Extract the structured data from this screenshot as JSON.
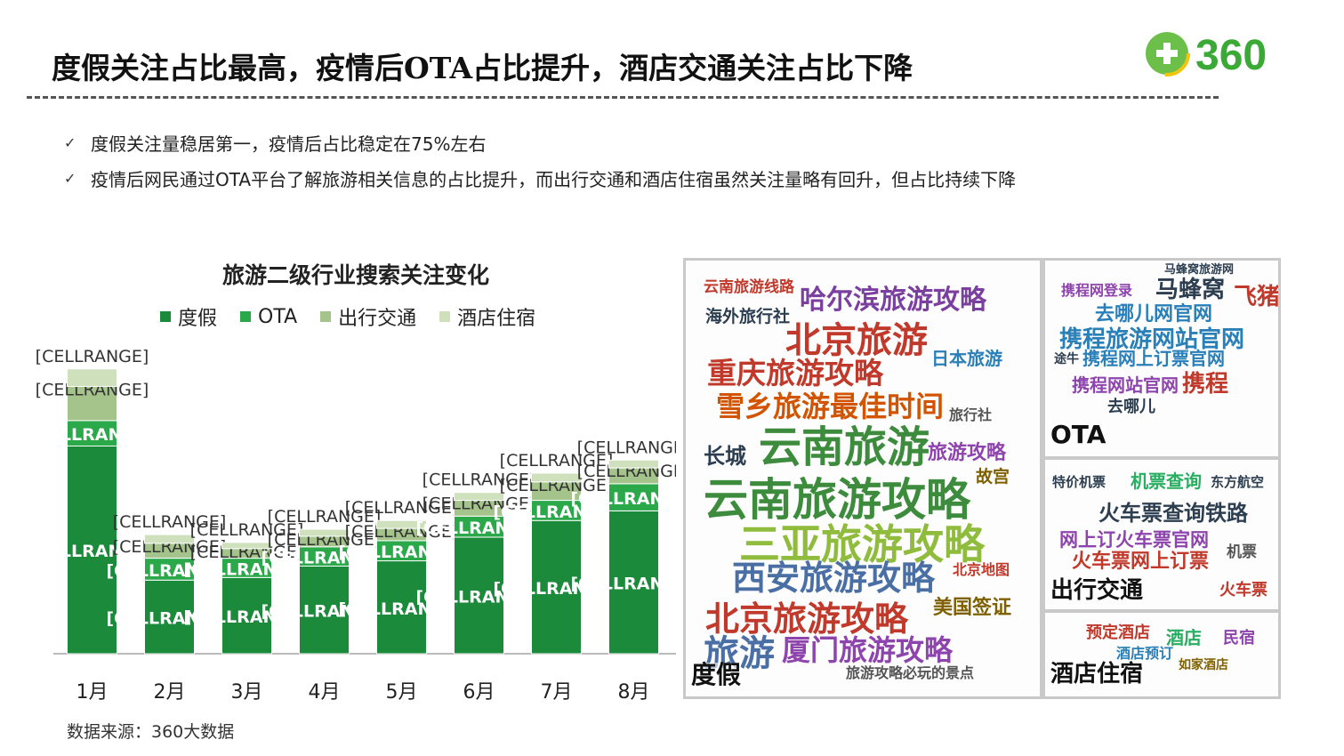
{
  "title": "度假关注占比最高，疫情后OTA占比提升，酒店交通关注占比下降",
  "logo": {
    "text": "360",
    "icon": "plus-circle-icon"
  },
  "bullets": [
    {
      "icon": "checkmark-icon",
      "mark": "✓",
      "text": "度假关注量稳居第一，疫情后占比稳定在75%左右"
    },
    {
      "icon": "checkmark-icon",
      "mark": "✓",
      "text": "疫情后网民通过OTA平台了解旅游相关信息的占比提升，而出行交通和酒店住宿虽然关注量略有回升，但占比持续下降"
    }
  ],
  "chart_data": {
    "type": "bar",
    "stacked": true,
    "title": "旅游二级行业搜索关注变化",
    "legend_position": "top",
    "categories": [
      "1月",
      "2月",
      "3月",
      "4月",
      "5月",
      "6月",
      "7月",
      "8月"
    ],
    "series": [
      {
        "name": "度假",
        "color": "#1b8a3a",
        "values": [
          237,
          84,
          87,
          100,
          106,
          133,
          152,
          163
        ]
      },
      {
        "name": "OTA",
        "color": "#2aa84a",
        "values": [
          29,
          25,
          22,
          22,
          23,
          24,
          23,
          31
        ]
      },
      {
        "name": "出行交通",
        "color": "#a5c48c",
        "values": [
          39,
          17,
          11,
          12,
          14,
          18,
          21,
          18
        ]
      },
      {
        "name": "酒店住宿",
        "color": "#cfe0bd",
        "values": [
          20,
          10,
          7,
          8,
          9,
          9,
          10,
          9
        ]
      }
    ],
    "data_label": "[CELLRANGE]",
    "ylim": [
      0,
      340
    ],
    "grid": false,
    "xlabel": "",
    "ylabel": ""
  },
  "source_text": "数据来源：360大数据",
  "word_clouds": [
    {
      "label": "度假",
      "words": [
        {
          "text": "云南旅游线路",
          "color": "#c0392b"
        },
        {
          "text": "哈尔滨旅游攻略",
          "color": "#7b3fa0"
        },
        {
          "text": "海外旅行社",
          "color": "#2c3e50"
        },
        {
          "text": "北京旅游",
          "color": "#c0392b"
        },
        {
          "text": "重庆旅游攻略",
          "color": "#c0392b"
        },
        {
          "text": "日本旅游",
          "color": "#2980b9"
        },
        {
          "text": "雪乡旅游最佳时间",
          "color": "#d35400"
        },
        {
          "text": "旅行社",
          "color": "#555555"
        },
        {
          "text": "长城",
          "color": "#2c3e50"
        },
        {
          "text": "云南旅游",
          "color": "#3d8b3d"
        },
        {
          "text": "旅游攻略",
          "color": "#8e44ad"
        },
        {
          "text": "故宫",
          "color": "#7f6000"
        },
        {
          "text": "云南旅游攻略",
          "color": "#3d8b3d"
        },
        {
          "text": "三亚旅游攻略",
          "color": "#8fbc3d"
        },
        {
          "text": "西安旅游攻略",
          "color": "#4a6fa5"
        },
        {
          "text": "北京地图",
          "color": "#c0392b"
        },
        {
          "text": "北京旅游攻略",
          "color": "#c0392b"
        },
        {
          "text": "美国签证",
          "color": "#7f6000"
        },
        {
          "text": "旅游",
          "color": "#4a6fa5"
        },
        {
          "text": "厦门旅游攻略",
          "color": "#8e44ad"
        },
        {
          "text": "旅游攻略必玩的景点",
          "color": "#555555"
        }
      ]
    },
    {
      "label": "OTA",
      "words": [
        {
          "text": "马蜂窝旅游网",
          "color": "#2c3e50"
        },
        {
          "text": "携程网登录",
          "color": "#8e44ad"
        },
        {
          "text": "马蜂窝",
          "color": "#2c3e50"
        },
        {
          "text": "飞猪",
          "color": "#c0392b"
        },
        {
          "text": "去哪儿网官网",
          "color": "#2980b9"
        },
        {
          "text": "携程旅游网站官网",
          "color": "#2980b9"
        },
        {
          "text": "携程网上订票官网",
          "color": "#2980b9"
        },
        {
          "text": "携程网站官网",
          "color": "#8e44ad"
        },
        {
          "text": "携程",
          "color": "#c0392b"
        },
        {
          "text": "去哪儿",
          "color": "#2c3e50"
        },
        {
          "text": "途牛",
          "color": "#2c3e50"
        }
      ]
    },
    {
      "label": "出行交通",
      "words": [
        {
          "text": "特价机票",
          "color": "#2c3e50"
        },
        {
          "text": "机票查询",
          "color": "#27ae60"
        },
        {
          "text": "东方航空",
          "color": "#2c3e50"
        },
        {
          "text": "火车票查询铁路",
          "color": "#2c3e50"
        },
        {
          "text": "网上订火车票官网",
          "color": "#8e44ad"
        },
        {
          "text": "火车票网上订票",
          "color": "#c0392b"
        },
        {
          "text": "机票",
          "color": "#555555"
        },
        {
          "text": "火车票",
          "color": "#c0392b"
        }
      ]
    },
    {
      "label": "酒店住宿",
      "words": [
        {
          "text": "预定酒店",
          "color": "#c0392b"
        },
        {
          "text": "酒店",
          "color": "#27ae60"
        },
        {
          "text": "民宿",
          "color": "#8e44ad"
        },
        {
          "text": "酒店预订",
          "color": "#2980b9"
        },
        {
          "text": "如家酒店",
          "color": "#7f6000"
        }
      ]
    }
  ]
}
